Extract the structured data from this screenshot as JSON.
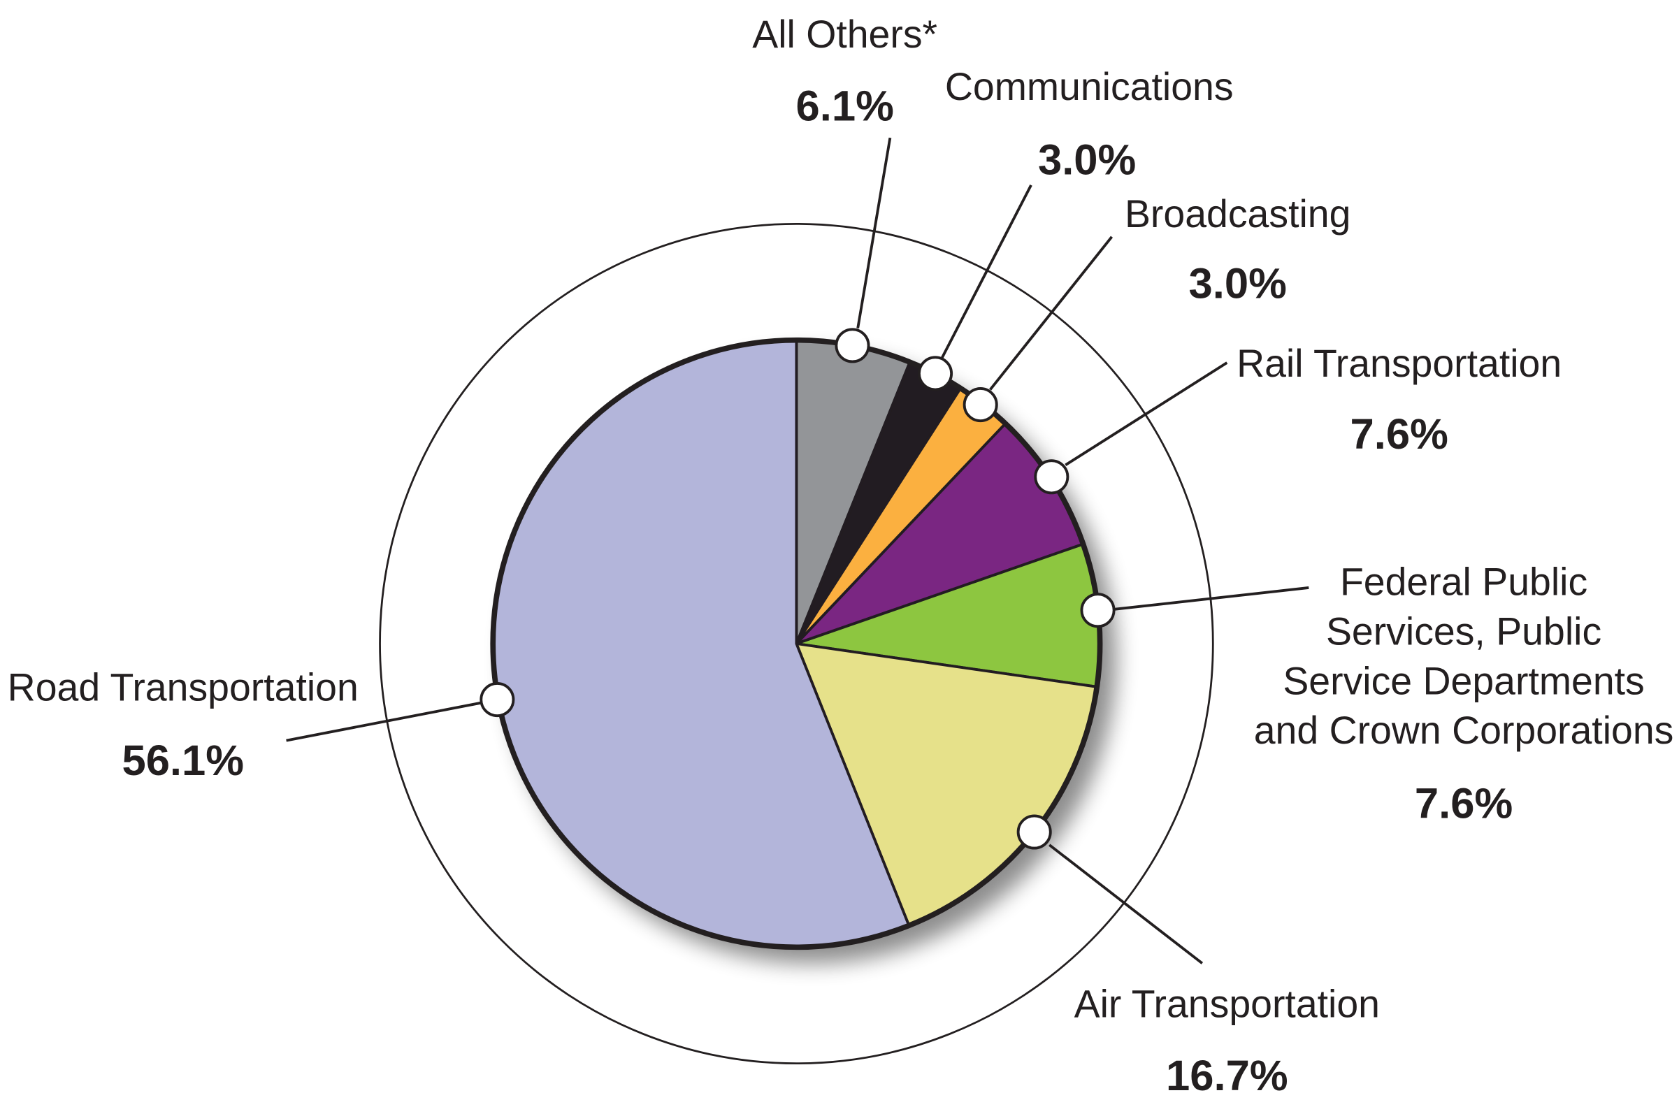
{
  "chart_data": {
    "type": "pie",
    "start": "top",
    "direction": "clockwise",
    "slices": [
      {
        "label": "All Others*",
        "value": 6.1,
        "value_label": "6.1%",
        "color": "#939598"
      },
      {
        "label": "Communications",
        "value": 3.0,
        "value_label": "3.0%",
        "color": "#231f20"
      },
      {
        "label": "Broadcasting",
        "value": 3.0,
        "value_label": "3.0%",
        "color": "#fbb040"
      },
      {
        "label": "Rail Transportation",
        "value": 7.6,
        "value_label": "7.6%",
        "color": "#7a2582"
      },
      {
        "label_lines": [
          "Federal Public",
          "Services, Public",
          "Service Departments",
          "and Crown Corporations"
        ],
        "label": "Federal Public Services, Public Service Departments and Crown Corporations",
        "value": 7.6,
        "value_label": "7.6%",
        "color": "#8dc63f"
      },
      {
        "label": "Air Transportation",
        "value": 16.7,
        "value_label": "16.7%",
        "color": "#e6e18a"
      },
      {
        "label": "Road Transportation",
        "value": 56.1,
        "value_label": "56.1%",
        "color": "#b3b5da"
      }
    ]
  }
}
